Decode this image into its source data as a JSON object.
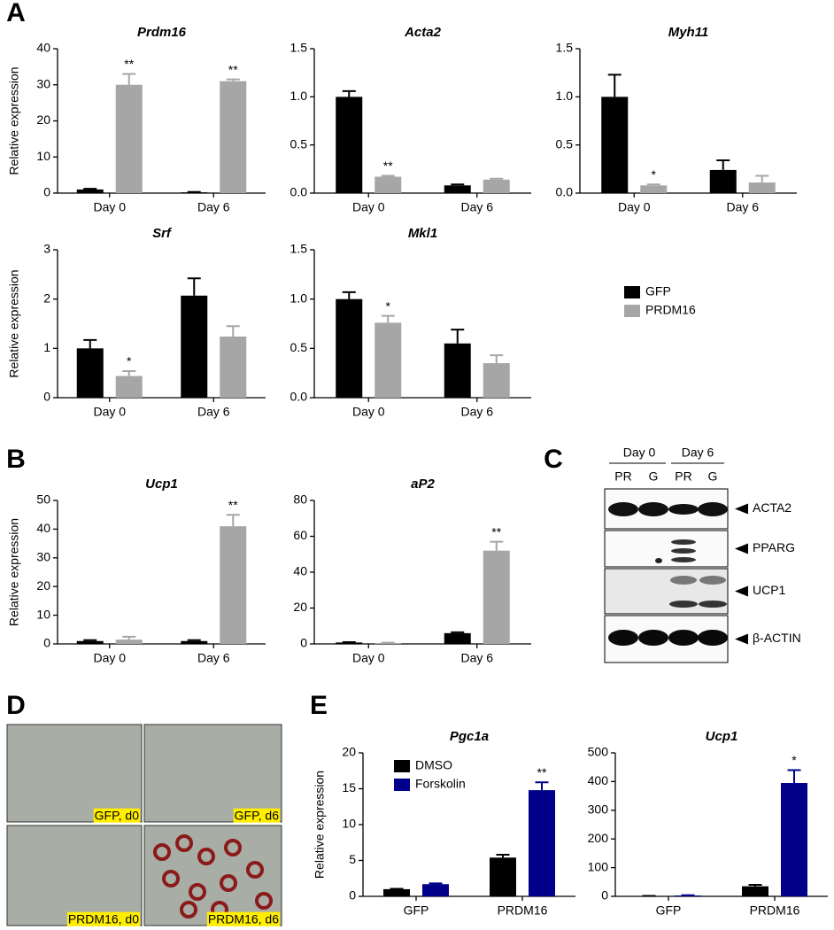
{
  "panel_labels": [
    "A",
    "B",
    "C",
    "D",
    "E"
  ],
  "chart_data": [
    {
      "type": "bar",
      "title": "Prdm16",
      "ylabel": "Relative expression",
      "categories": [
        "Day 0",
        "Day 6"
      ],
      "series": [
        {
          "color": "#000000",
          "values": [
            1.0,
            0.2
          ],
          "errors": [
            0.2,
            0.1
          ],
          "markers": [
            null,
            null
          ]
        },
        {
          "color": "#a6a6a6",
          "values": [
            30,
            31
          ],
          "errors": [
            3,
            0.5
          ],
          "markers": [
            "**",
            "**"
          ]
        }
      ],
      "ylim": [
        0,
        40
      ],
      "yticks": [
        0,
        10,
        20,
        30,
        40
      ]
    },
    {
      "type": "bar",
      "title": "Acta2",
      "categories": [
        "Day 0",
        "Day 6"
      ],
      "series": [
        {
          "color": "#000000",
          "values": [
            1.0,
            0.08
          ],
          "errors": [
            0.06,
            0.01
          ],
          "markers": [
            null,
            null
          ]
        },
        {
          "color": "#a6a6a6",
          "values": [
            0.17,
            0.14
          ],
          "errors": [
            0.01,
            0.01
          ],
          "markers": [
            "**",
            null
          ]
        }
      ],
      "ylim": [
        0,
        1.5
      ],
      "yticks": [
        {
          "value": 0,
          "label": "0.0"
        },
        {
          "value": 0.5,
          "label": "0.5"
        },
        {
          "value": 1,
          "label": "1.0"
        },
        {
          "value": 1.5,
          "label": "1.5"
        }
      ]
    },
    {
      "type": "bar",
      "title": "Myh11",
      "categories": [
        "Day 0",
        "Day 6"
      ],
      "series": [
        {
          "color": "#000000",
          "values": [
            1.0,
            0.24
          ],
          "errors": [
            0.23,
            0.1
          ],
          "markers": [
            null,
            null
          ]
        },
        {
          "color": "#a6a6a6",
          "values": [
            0.08,
            0.11
          ],
          "errors": [
            0.01,
            0.07
          ],
          "markers": [
            "*",
            null
          ]
        }
      ],
      "ylim": [
        0,
        1.5
      ],
      "yticks": [
        {
          "value": 0,
          "label": "0.0"
        },
        {
          "value": 0.5,
          "label": "0.5"
        },
        {
          "value": 1,
          "label": "1.0"
        },
        {
          "value": 1.5,
          "label": "1.5"
        }
      ]
    },
    {
      "type": "bar",
      "title": "Srf",
      "ylabel": "Relative expression",
      "categories": [
        "Day 0",
        "Day 6"
      ],
      "series": [
        {
          "color": "#000000",
          "values": [
            1.0,
            2.07
          ],
          "errors": [
            0.17,
            0.35
          ],
          "markers": [
            null,
            null
          ]
        },
        {
          "color": "#a6a6a6",
          "values": [
            0.44,
            1.24
          ],
          "errors": [
            0.1,
            0.21
          ],
          "markers": [
            "*",
            null
          ]
        }
      ],
      "ylim": [
        0,
        3
      ],
      "yticks": [
        0,
        1,
        2,
        3
      ]
    },
    {
      "type": "bar",
      "title": "Mkl1",
      "categories": [
        "Day 0",
        "Day 6"
      ],
      "legend": "right",
      "series": [
        {
          "name": "GFP",
          "color": "#000000",
          "values": [
            1.0,
            0.55
          ],
          "errors": [
            0.07,
            0.14
          ],
          "markers": [
            null,
            null
          ]
        },
        {
          "name": "PRDM16",
          "color": "#a6a6a6",
          "values": [
            0.76,
            0.35
          ],
          "errors": [
            0.07,
            0.08
          ],
          "markers": [
            "*",
            null
          ]
        }
      ],
      "ylim": [
        0,
        1.5
      ],
      "yticks": [
        {
          "value": 0,
          "label": "0.0"
        },
        {
          "value": 0.5,
          "label": "0.5"
        },
        {
          "value": 1,
          "label": "1.0"
        },
        {
          "value": 1.5,
          "label": "1.5"
        }
      ]
    },
    {
      "type": "bar",
      "title": "Ucp1",
      "ylabel": "Relative expression",
      "categories": [
        "Day 0",
        "Day 6"
      ],
      "series": [
        {
          "color": "#000000",
          "values": [
            1,
            1
          ],
          "errors": [
            0.3,
            0.3
          ],
          "markers": [
            null,
            null
          ]
        },
        {
          "color": "#a6a6a6",
          "values": [
            1.5,
            41
          ],
          "errors": [
            1,
            4
          ],
          "markers": [
            null,
            "**"
          ]
        }
      ],
      "ylim": [
        0,
        50
      ],
      "yticks": [
        0,
        10,
        20,
        30,
        40,
        50
      ]
    },
    {
      "type": "bar",
      "title": "aP2",
      "categories": [
        "Day 0",
        "Day 6"
      ],
      "series": [
        {
          "color": "#000000",
          "values": [
            0.8,
            6
          ],
          "errors": [
            0.2,
            0.5
          ],
          "markers": [
            null,
            null
          ]
        },
        {
          "color": "#a6a6a6",
          "values": [
            0.5,
            52
          ],
          "errors": [
            0.2,
            5
          ],
          "markers": [
            null,
            "**"
          ]
        }
      ],
      "ylim": [
        0,
        80
      ],
      "yticks": [
        0,
        20,
        40,
        60,
        80
      ]
    },
    {
      "type": "bar",
      "title": "Pgc1a",
      "ylabel": "Relative expression",
      "categories": [
        "GFP",
        "PRDM16"
      ],
      "legend": "upper left",
      "series": [
        {
          "name": "DMSO",
          "color": "#000000",
          "values": [
            1.0,
            5.4
          ],
          "errors": [
            0.05,
            0.4
          ],
          "markers": [
            null,
            null
          ]
        },
        {
          "name": "Forskolin",
          "color": "#00008b",
          "values": [
            1.7,
            14.8
          ],
          "errors": [
            0.1,
            1.1
          ],
          "markers": [
            null,
            "**"
          ]
        }
      ],
      "ylim": [
        0,
        20
      ],
      "yticks": [
        0,
        5,
        10,
        15,
        20
      ]
    },
    {
      "type": "bar",
      "title": "Ucp1",
      "categories": [
        "GFP",
        "PRDM16"
      ],
      "series": [
        {
          "color": "#000000",
          "values": [
            1,
            35
          ],
          "errors": [
            0.5,
            5
          ],
          "markers": [
            null,
            null
          ]
        },
        {
          "color": "#00008b",
          "values": [
            3,
            395
          ],
          "errors": [
            1,
            45
          ],
          "markers": [
            null,
            "*"
          ]
        }
      ],
      "ylim": [
        0,
        500
      ],
      "yticks": [
        0,
        100,
        200,
        300,
        400,
        500
      ]
    }
  ],
  "blot": {
    "days": [
      "Day 0",
      "Day 6"
    ],
    "lanes": [
      "PR",
      "G",
      "PR",
      "G"
    ],
    "proteins": [
      "ACTA2",
      "PPARG",
      "UCP1",
      "β-ACTIN"
    ]
  },
  "micrographs": {
    "labels": [
      "GFP, d0",
      "GFP, d6",
      "PRDM16, d0",
      "PRDM16, d6"
    ]
  }
}
